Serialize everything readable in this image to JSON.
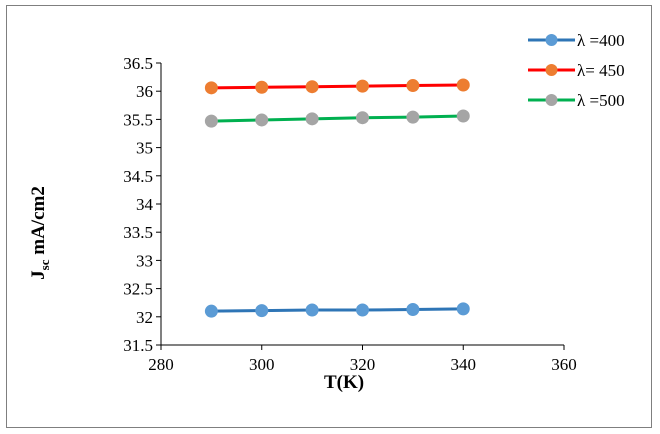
{
  "chart_data": {
    "type": "line",
    "xlabel": "T(K)",
    "ylabel_main": "J",
    "ylabel_sub": "sc",
    "ylabel_rest": " mA/cm2",
    "xlim": [
      280,
      360
    ],
    "ylim": [
      31.5,
      36.5
    ],
    "x_ticks": [
      280,
      300,
      320,
      340,
      360
    ],
    "y_ticks": [
      31.5,
      32,
      32.5,
      33,
      33.5,
      34,
      34.5,
      35,
      35.5,
      36,
      36.5
    ],
    "x_tick_labels": [
      "280",
      "300",
      "320",
      "340",
      "360"
    ],
    "y_tick_labels": [
      "31.5",
      "32",
      "32.5",
      "33",
      "33.5",
      "34",
      "34.5",
      "35",
      "35.5",
      "36",
      "36.5"
    ],
    "grid": false,
    "legend_position": "top-right",
    "x": [
      290,
      300,
      310,
      320,
      330,
      340
    ],
    "series": [
      {
        "name": "λ =400",
        "values": [
          32.1,
          32.11,
          32.12,
          32.12,
          32.13,
          32.14
        ],
        "line_color": "#2e75b6",
        "marker_color": "#5b9bd5"
      },
      {
        "name": "λ= 450",
        "values": [
          36.06,
          36.07,
          36.08,
          36.09,
          36.1,
          36.11
        ],
        "line_color": "#ff0000",
        "marker_color": "#ed7d31"
      },
      {
        "name": "λ =500",
        "values": [
          35.47,
          35.49,
          35.51,
          35.53,
          35.54,
          35.56
        ],
        "line_color": "#00b050",
        "marker_color": "#a5a5a5"
      }
    ]
  }
}
